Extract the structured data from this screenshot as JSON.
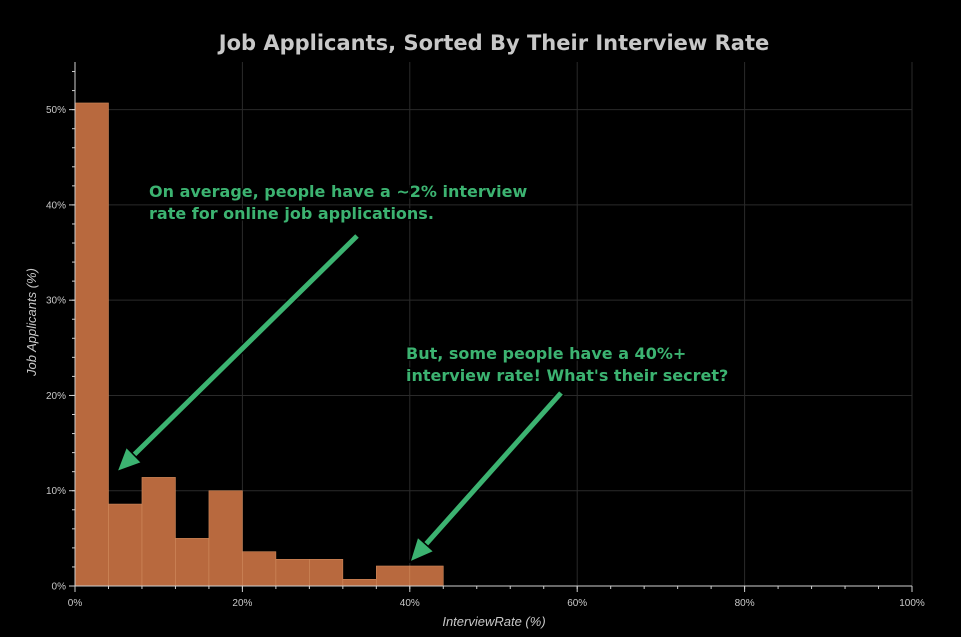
{
  "chart_data": {
    "type": "bar",
    "title": "Job Applicants, Sorted By Their Interview Rate",
    "xlabel": "InterviewRate (%)",
    "ylabel": "Job Applicants (%)",
    "xlim": [
      0,
      100
    ],
    "ylim": [
      0,
      55
    ],
    "xticks": [
      0,
      20,
      40,
      60,
      80,
      100
    ],
    "xtick_labels": [
      "0%",
      "20%",
      "40%",
      "60%",
      "80%",
      "100%"
    ],
    "yticks": [
      0,
      10,
      20,
      30,
      40,
      50
    ],
    "ytick_labels": [
      "0%",
      "10%",
      "20%",
      "30%",
      "40%",
      "50%"
    ],
    "grid": true,
    "bar_color": "#b8693e",
    "annotation_color": "#3cb371",
    "background": "#000000",
    "bins": [
      {
        "x0": 0,
        "x1": 4,
        "value": 50.7
      },
      {
        "x0": 4,
        "x1": 8,
        "value": 8.6
      },
      {
        "x0": 8,
        "x1": 12,
        "value": 11.4
      },
      {
        "x0": 12,
        "x1": 16,
        "value": 5.0
      },
      {
        "x0": 16,
        "x1": 20,
        "value": 10.0
      },
      {
        "x0": 20,
        "x1": 24,
        "value": 3.6
      },
      {
        "x0": 24,
        "x1": 28,
        "value": 2.8
      },
      {
        "x0": 28,
        "x1": 32,
        "value": 2.8
      },
      {
        "x0": 32,
        "x1": 36,
        "value": 0.7
      },
      {
        "x0": 36,
        "x1": 40,
        "value": 2.1
      },
      {
        "x0": 40,
        "x1": 44,
        "value": 2.1
      }
    ],
    "annotations": [
      {
        "lines": [
          "On average, people have a ~2% interview",
          "rate for online job applications."
        ],
        "arrow_to": [
          5,
          12
        ]
      },
      {
        "lines": [
          "But, some people have a 40%+",
          "interview rate! What's their secret?"
        ],
        "arrow_to": [
          40,
          2.5
        ]
      }
    ]
  }
}
